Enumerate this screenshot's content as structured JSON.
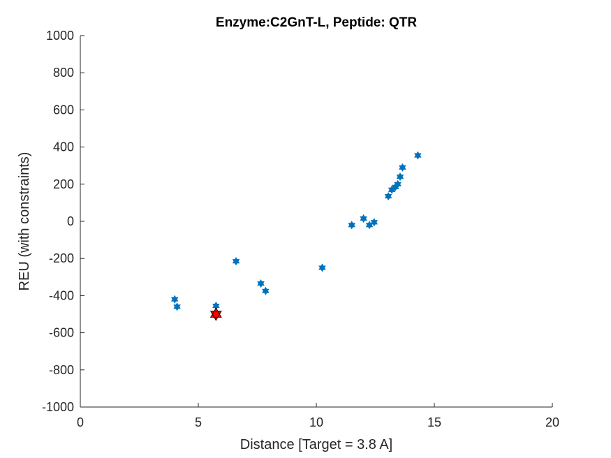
{
  "chart_data": {
    "type": "scatter",
    "title": "Enzyme:C2GnT-L, Peptide: QTR",
    "xlabel": "Distance [Target = 3.8 A]",
    "ylabel": "REU (with constraints)",
    "xlim": [
      0,
      20
    ],
    "ylim": [
      -1000,
      1000
    ],
    "xticks": [
      0,
      5,
      10,
      15,
      20
    ],
    "yticks": [
      -1000,
      -800,
      -600,
      -400,
      -200,
      0,
      200,
      400,
      600,
      800,
      1000
    ],
    "grid": false,
    "series": [
      {
        "marker": "hexagram",
        "color": "#0072BD",
        "points": [
          {
            "x": 4.0,
            "y": -420
          },
          {
            "x": 4.1,
            "y": -460
          },
          {
            "x": 5.75,
            "y": -455
          },
          {
            "x": 6.6,
            "y": -215
          },
          {
            "x": 7.65,
            "y": -335
          },
          {
            "x": 7.85,
            "y": -375
          },
          {
            "x": 10.25,
            "y": -250
          },
          {
            "x": 11.5,
            "y": -20
          },
          {
            "x": 12.0,
            "y": 15
          },
          {
            "x": 12.25,
            "y": -20
          },
          {
            "x": 12.45,
            "y": -5
          },
          {
            "x": 13.05,
            "y": 135
          },
          {
            "x": 13.2,
            "y": 170
          },
          {
            "x": 13.35,
            "y": 185
          },
          {
            "x": 13.45,
            "y": 200
          },
          {
            "x": 13.55,
            "y": 240
          },
          {
            "x": 13.65,
            "y": 290
          },
          {
            "x": 14.3,
            "y": 355
          }
        ]
      },
      {
        "marker": "hexagram",
        "color": "#FF0000",
        "points": [
          {
            "x": 5.75,
            "y": -500
          }
        ]
      }
    ]
  }
}
